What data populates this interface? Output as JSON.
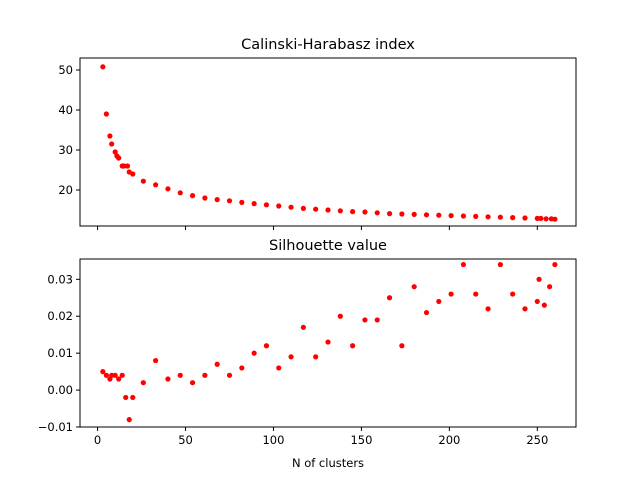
{
  "chart_data": [
    {
      "type": "scatter",
      "title": "Calinski-Harabasz index",
      "xlabel": "",
      "ylabel": "",
      "xlim": [
        -10,
        272
      ],
      "ylim": [
        11,
        53
      ],
      "xticks": [
        0,
        50,
        100,
        150,
        200,
        250
      ],
      "show_xtick_labels": false,
      "yticks": [
        20,
        30,
        40,
        50
      ],
      "ytick_labels": [
        "20",
        "30",
        "40",
        "50"
      ],
      "grid": false,
      "color": "#ff0000",
      "series": [
        {
          "x": [
            3,
            5,
            7,
            8,
            10,
            11,
            12,
            14,
            15,
            17,
            18,
            20,
            26,
            33,
            40,
            47,
            54,
            61,
            68,
            75,
            82,
            89,
            96,
            103,
            110,
            117,
            124,
            131,
            138,
            145,
            152,
            159,
            166,
            173,
            180,
            187,
            194,
            201,
            208,
            215,
            222,
            229,
            236,
            243,
            250,
            252,
            255,
            258,
            260
          ],
          "y": [
            50.8,
            39,
            33.5,
            31.5,
            29.5,
            28.5,
            28,
            26,
            26,
            26,
            24.5,
            24,
            22.2,
            21.3,
            20.3,
            19.3,
            18.6,
            18,
            17.6,
            17.3,
            16.9,
            16.6,
            16.3,
            16,
            15.7,
            15.4,
            15.2,
            15,
            14.8,
            14.6,
            14.5,
            14.3,
            14.1,
            14,
            13.9,
            13.8,
            13.7,
            13.6,
            13.5,
            13.4,
            13.3,
            13.2,
            13.1,
            13,
            12.9,
            12.9,
            12.8,
            12.8,
            12.7
          ]
        }
      ]
    },
    {
      "type": "scatter",
      "title": "Silhouette value",
      "xlabel": "N of clusters",
      "ylabel": "",
      "xlim": [
        -10,
        272
      ],
      "ylim": [
        -0.01,
        0.0355
      ],
      "xticks": [
        0,
        50,
        100,
        150,
        200,
        250
      ],
      "xtick_labels": [
        "0",
        "50",
        "100",
        "150",
        "200",
        "250"
      ],
      "yticks": [
        -0.01,
        0.0,
        0.01,
        0.02,
        0.03
      ],
      "ytick_labels": [
        "−0.01",
        "0.00",
        "0.01",
        "0.02",
        "0.03"
      ],
      "grid": false,
      "color": "#ff0000",
      "series": [
        {
          "x": [
            3,
            5,
            7,
            8,
            10,
            12,
            14,
            16,
            18,
            20,
            26,
            33,
            40,
            47,
            54,
            61,
            68,
            75,
            82,
            89,
            96,
            103,
            110,
            117,
            124,
            131,
            138,
            145,
            152,
            159,
            166,
            173,
            180,
            187,
            194,
            201,
            208,
            215,
            222,
            229,
            236,
            243,
            250,
            251,
            254,
            257,
            260
          ],
          "y": [
            0.005,
            0.004,
            0.003,
            0.004,
            0.004,
            0.003,
            0.004,
            -0.002,
            -0.008,
            -0.002,
            0.002,
            0.008,
            0.003,
            0.004,
            0.002,
            0.004,
            0.007,
            0.004,
            0.006,
            0.01,
            0.012,
            0.006,
            0.009,
            0.017,
            0.009,
            0.013,
            0.02,
            0.012,
            0.019,
            0.019,
            0.025,
            0.012,
            0.028,
            0.021,
            0.024,
            0.026,
            0.034,
            0.026,
            0.022,
            0.034,
            0.026,
            0.022,
            0.024,
            0.03,
            0.023,
            0.028,
            0.034
          ]
        }
      ]
    }
  ]
}
